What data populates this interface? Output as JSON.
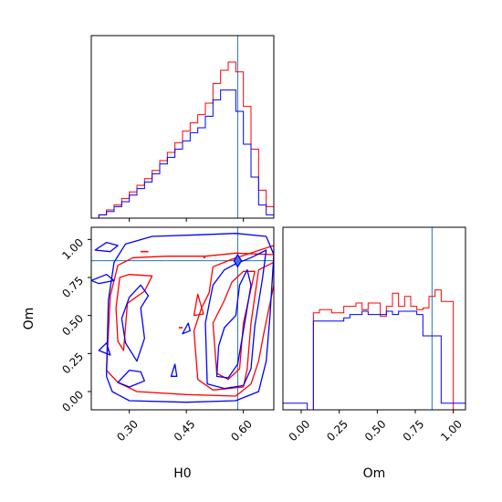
{
  "chart_data": {
    "type": "corner",
    "parameters": [
      "H0",
      "Om"
    ],
    "truth": {
      "H0": 0.585,
      "Om": 0.86
    },
    "colors": {
      "red": "#ff0000",
      "blue": "#0000ff",
      "truth": "#1f77b4"
    },
    "series_colors": [
      "red",
      "blue"
    ],
    "axes": {
      "H0": {
        "label": "H0",
        "range": [
          0.2,
          0.68
        ],
        "ticks": [
          "0.30",
          "0.45",
          "0.60"
        ],
        "tick_values": [
          0.3,
          0.45,
          0.6
        ]
      },
      "Om": {
        "label": "Om",
        "range": [
          -0.12,
          1.08
        ],
        "ticks": [
          "0.00",
          "0.25",
          "0.50",
          "0.75",
          "1.00"
        ],
        "tick_values": [
          0.0,
          0.25,
          0.5,
          0.75,
          1.0
        ]
      }
    },
    "hist_H0": {
      "bin_edges": [
        0.2,
        0.22,
        0.24,
        0.26,
        0.28,
        0.3,
        0.32,
        0.34,
        0.36,
        0.38,
        0.4,
        0.42,
        0.44,
        0.46,
        0.48,
        0.5,
        0.52,
        0.54,
        0.56,
        0.58,
        0.6,
        0.62,
        0.64,
        0.66,
        0.68
      ],
      "red": [
        0.0,
        0.02,
        0.05,
        0.08,
        0.12,
        0.16,
        0.2,
        0.24,
        0.29,
        0.35,
        0.4,
        0.46,
        0.53,
        0.58,
        0.63,
        0.7,
        0.82,
        0.9,
        0.95,
        0.89,
        0.68,
        0.42,
        0.17,
        0.07
      ],
      "blue": [
        0.0,
        0.02,
        0.04,
        0.07,
        0.1,
        0.14,
        0.18,
        0.22,
        0.27,
        0.33,
        0.37,
        0.42,
        0.47,
        0.52,
        0.55,
        0.62,
        0.72,
        0.78,
        0.78,
        0.65,
        0.45,
        0.25,
        0.08,
        0.02
      ]
    },
    "hist_Om": {
      "bin_edges": [
        -0.12,
        -0.08,
        -0.04,
        0.0,
        0.04,
        0.08,
        0.12,
        0.16,
        0.2,
        0.24,
        0.28,
        0.32,
        0.36,
        0.4,
        0.44,
        0.48,
        0.52,
        0.56,
        0.6,
        0.64,
        0.68,
        0.72,
        0.76,
        0.8,
        0.84,
        0.88,
        0.92,
        0.96,
        1.0,
        1.04,
        1.08
      ],
      "red": [
        0.0,
        0.0,
        0.0,
        0.0,
        0.0,
        0.59,
        0.61,
        0.61,
        0.59,
        0.59,
        0.63,
        0.63,
        0.65,
        0.61,
        0.65,
        0.65,
        0.57,
        0.63,
        0.71,
        0.63,
        0.69,
        0.63,
        0.61,
        0.62,
        0.69,
        0.73,
        0.66,
        0.66,
        0.0,
        0.0
      ],
      "blue": [
        0.04,
        0.04,
        0.04,
        0.04,
        0.0,
        0.54,
        0.54,
        0.54,
        0.54,
        0.54,
        0.56,
        0.58,
        0.58,
        0.6,
        0.58,
        0.58,
        0.58,
        0.6,
        0.58,
        0.6,
        0.6,
        0.6,
        0.58,
        0.45,
        0.45,
        0.45,
        0.04,
        0.04,
        0.04,
        0.04
      ]
    },
    "contours": {
      "red": [
        [
          [
            0.24,
            0.14
          ],
          [
            0.25,
            0.63
          ],
          [
            0.27,
            0.83
          ],
          [
            0.31,
            0.88
          ],
          [
            0.4,
            0.89
          ],
          [
            0.5,
            0.89
          ],
          [
            0.58,
            0.91
          ],
          [
            0.68,
            0.9
          ],
          [
            0.68,
            0.7
          ],
          [
            0.655,
            0.4
          ],
          [
            0.64,
            0.2
          ],
          [
            0.62,
            0.05
          ],
          [
            0.58,
            -0.03
          ],
          [
            0.45,
            -0.02
          ],
          [
            0.32,
            0.0
          ],
          [
            0.27,
            0.06
          ],
          [
            0.24,
            0.14
          ]
        ],
        [
          [
            0.285,
            0.27
          ],
          [
            0.295,
            0.58
          ],
          [
            0.34,
            0.66
          ],
          [
            0.36,
            0.76
          ],
          [
            0.3,
            0.77
          ],
          [
            0.275,
            0.75
          ],
          [
            0.265,
            0.55
          ],
          [
            0.27,
            0.33
          ],
          [
            0.285,
            0.27
          ]
        ],
        [
          [
            0.48,
            0.08
          ],
          [
            0.47,
            0.4
          ],
          [
            0.49,
            0.55
          ],
          [
            0.51,
            0.65
          ],
          [
            0.52,
            0.82
          ],
          [
            0.57,
            0.87
          ],
          [
            0.68,
            0.96
          ],
          [
            0.68,
            0.85
          ],
          [
            0.64,
            0.8
          ],
          [
            0.62,
            0.45
          ],
          [
            0.61,
            0.15
          ],
          [
            0.6,
            0.03
          ],
          [
            0.52,
            0.01
          ],
          [
            0.48,
            0.08
          ]
        ],
        [
          [
            0.53,
            0.12
          ],
          [
            0.52,
            0.45
          ],
          [
            0.55,
            0.6
          ],
          [
            0.57,
            0.72
          ],
          [
            0.6,
            0.79
          ],
          [
            0.63,
            0.79
          ],
          [
            0.6,
            0.45
          ],
          [
            0.59,
            0.15
          ],
          [
            0.56,
            0.08
          ],
          [
            0.53,
            0.12
          ]
        ],
        [
          [
            0.47,
            0.5
          ],
          [
            0.495,
            0.51
          ],
          [
            0.48,
            0.64
          ],
          [
            0.47,
            0.5
          ]
        ]
      ],
      "blue": [
        [
          [
            0.24,
            0.1
          ],
          [
            0.245,
            0.6
          ],
          [
            0.26,
            0.85
          ],
          [
            0.29,
            0.97
          ],
          [
            0.36,
            1.02
          ],
          [
            0.48,
            1.03
          ],
          [
            0.58,
            1.04
          ],
          [
            0.66,
            1.02
          ],
          [
            0.68,
            0.9
          ],
          [
            0.67,
            0.5
          ],
          [
            0.66,
            0.2
          ],
          [
            0.64,
            0.0
          ],
          [
            0.58,
            -0.06
          ],
          [
            0.45,
            -0.07
          ],
          [
            0.3,
            -0.06
          ],
          [
            0.255,
            0.0
          ],
          [
            0.24,
            0.1
          ]
        ],
        [
          [
            0.21,
            0.93
          ],
          [
            0.24,
            0.98
          ],
          [
            0.27,
            0.96
          ],
          [
            0.25,
            0.92
          ],
          [
            0.21,
            0.93
          ]
        ],
        [
          [
            0.34,
            0.35
          ],
          [
            0.33,
            0.55
          ],
          [
            0.35,
            0.63
          ],
          [
            0.33,
            0.7
          ],
          [
            0.3,
            0.62
          ],
          [
            0.28,
            0.48
          ],
          [
            0.29,
            0.32
          ],
          [
            0.32,
            0.2
          ],
          [
            0.34,
            0.35
          ]
        ],
        [
          [
            0.27,
            0.06
          ],
          [
            0.3,
            0.14
          ],
          [
            0.33,
            0.13
          ],
          [
            0.34,
            0.07
          ],
          [
            0.3,
            0.03
          ],
          [
            0.27,
            0.06
          ]
        ],
        [
          [
            0.22,
            0.27
          ],
          [
            0.24,
            0.32
          ],
          [
            0.25,
            0.24
          ],
          [
            0.22,
            0.27
          ]
        ],
        [
          [
            0.2,
            0.73
          ],
          [
            0.24,
            0.77
          ],
          [
            0.26,
            0.73
          ],
          [
            0.22,
            0.71
          ],
          [
            0.2,
            0.73
          ]
        ],
        [
          [
            0.505,
            0.05
          ],
          [
            0.5,
            0.45
          ],
          [
            0.52,
            0.7
          ],
          [
            0.55,
            0.8
          ],
          [
            0.58,
            0.84
          ],
          [
            0.62,
            0.88
          ],
          [
            0.66,
            0.93
          ],
          [
            0.65,
            0.74
          ],
          [
            0.63,
            0.43
          ],
          [
            0.62,
            0.15
          ],
          [
            0.6,
            0.04
          ],
          [
            0.55,
            0.02
          ],
          [
            0.505,
            0.05
          ]
        ],
        [
          [
            0.53,
            0.1
          ],
          [
            0.535,
            0.3
          ],
          [
            0.55,
            0.42
          ],
          [
            0.58,
            0.5
          ],
          [
            0.59,
            0.7
          ],
          [
            0.61,
            0.8
          ],
          [
            0.62,
            0.7
          ],
          [
            0.6,
            0.4
          ],
          [
            0.585,
            0.18
          ],
          [
            0.56,
            0.09
          ],
          [
            0.53,
            0.1
          ]
        ],
        [
          [
            0.44,
            0.38
          ],
          [
            0.455,
            0.45
          ],
          [
            0.46,
            0.4
          ],
          [
            0.44,
            0.38
          ]
        ],
        [
          [
            0.41,
            0.1
          ],
          [
            0.42,
            0.18
          ],
          [
            0.425,
            0.1
          ],
          [
            0.41,
            0.1
          ]
        ]
      ],
      "blue_filled": [
        [
          [
            0.585,
            0.82
          ],
          [
            0.595,
            0.86
          ],
          [
            0.585,
            0.9
          ],
          [
            0.575,
            0.86
          ],
          [
            0.585,
            0.82
          ]
        ]
      ],
      "red_dashes": [
        [
          [
            0.33,
            0.92
          ],
          [
            0.35,
            0.92
          ]
        ],
        [
          [
            0.43,
            0.42
          ],
          [
            0.44,
            0.42
          ]
        ],
        [
          [
            0.495,
            0.88
          ],
          [
            0.5,
            0.88
          ]
        ]
      ]
    }
  }
}
